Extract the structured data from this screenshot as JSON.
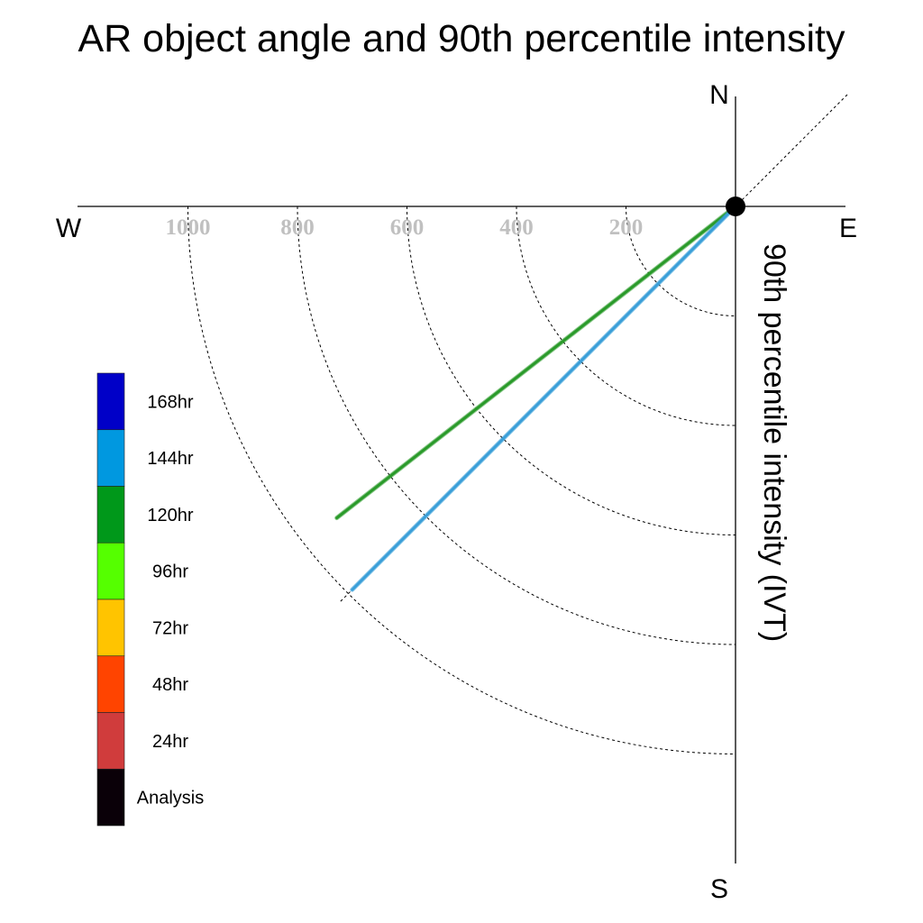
{
  "chart_data": {
    "type": "polar-vector",
    "title": "AR object angle and 90th percentile intensity",
    "radial_axis_label": "90th percentile intensity (IVT)",
    "compass": {
      "north": "N",
      "south": "S",
      "east": "E",
      "west": "W"
    },
    "rings": [
      200,
      400,
      600,
      800,
      1000
    ],
    "ring_labels": [
      "200",
      "400",
      "600",
      "800",
      "1000"
    ],
    "rmax": 1000,
    "reference_angle_deg": 45,
    "series": [
      {
        "name": "120hr",
        "angle_deg": 38,
        "intensity": 924,
        "color": "#2a9a2a"
      },
      {
        "name": "144hr",
        "angle_deg": 45,
        "intensity": 990,
        "color": "#3a9fd8"
      }
    ],
    "legend": [
      {
        "label": "168hr",
        "color": "#0000c8"
      },
      {
        "label": "144hr",
        "color": "#0098e0"
      },
      {
        "label": "120hr",
        "color": "#00981a"
      },
      {
        "label": "96hr",
        "color": "#55ff00"
      },
      {
        "label": "72hr",
        "color": "#ffc400"
      },
      {
        "label": "48hr",
        "color": "#ff4400"
      },
      {
        "label": "24hr",
        "color": "#d03c3c"
      },
      {
        "label": "Analysis",
        "color": "#0a0008"
      }
    ],
    "grid": true
  }
}
